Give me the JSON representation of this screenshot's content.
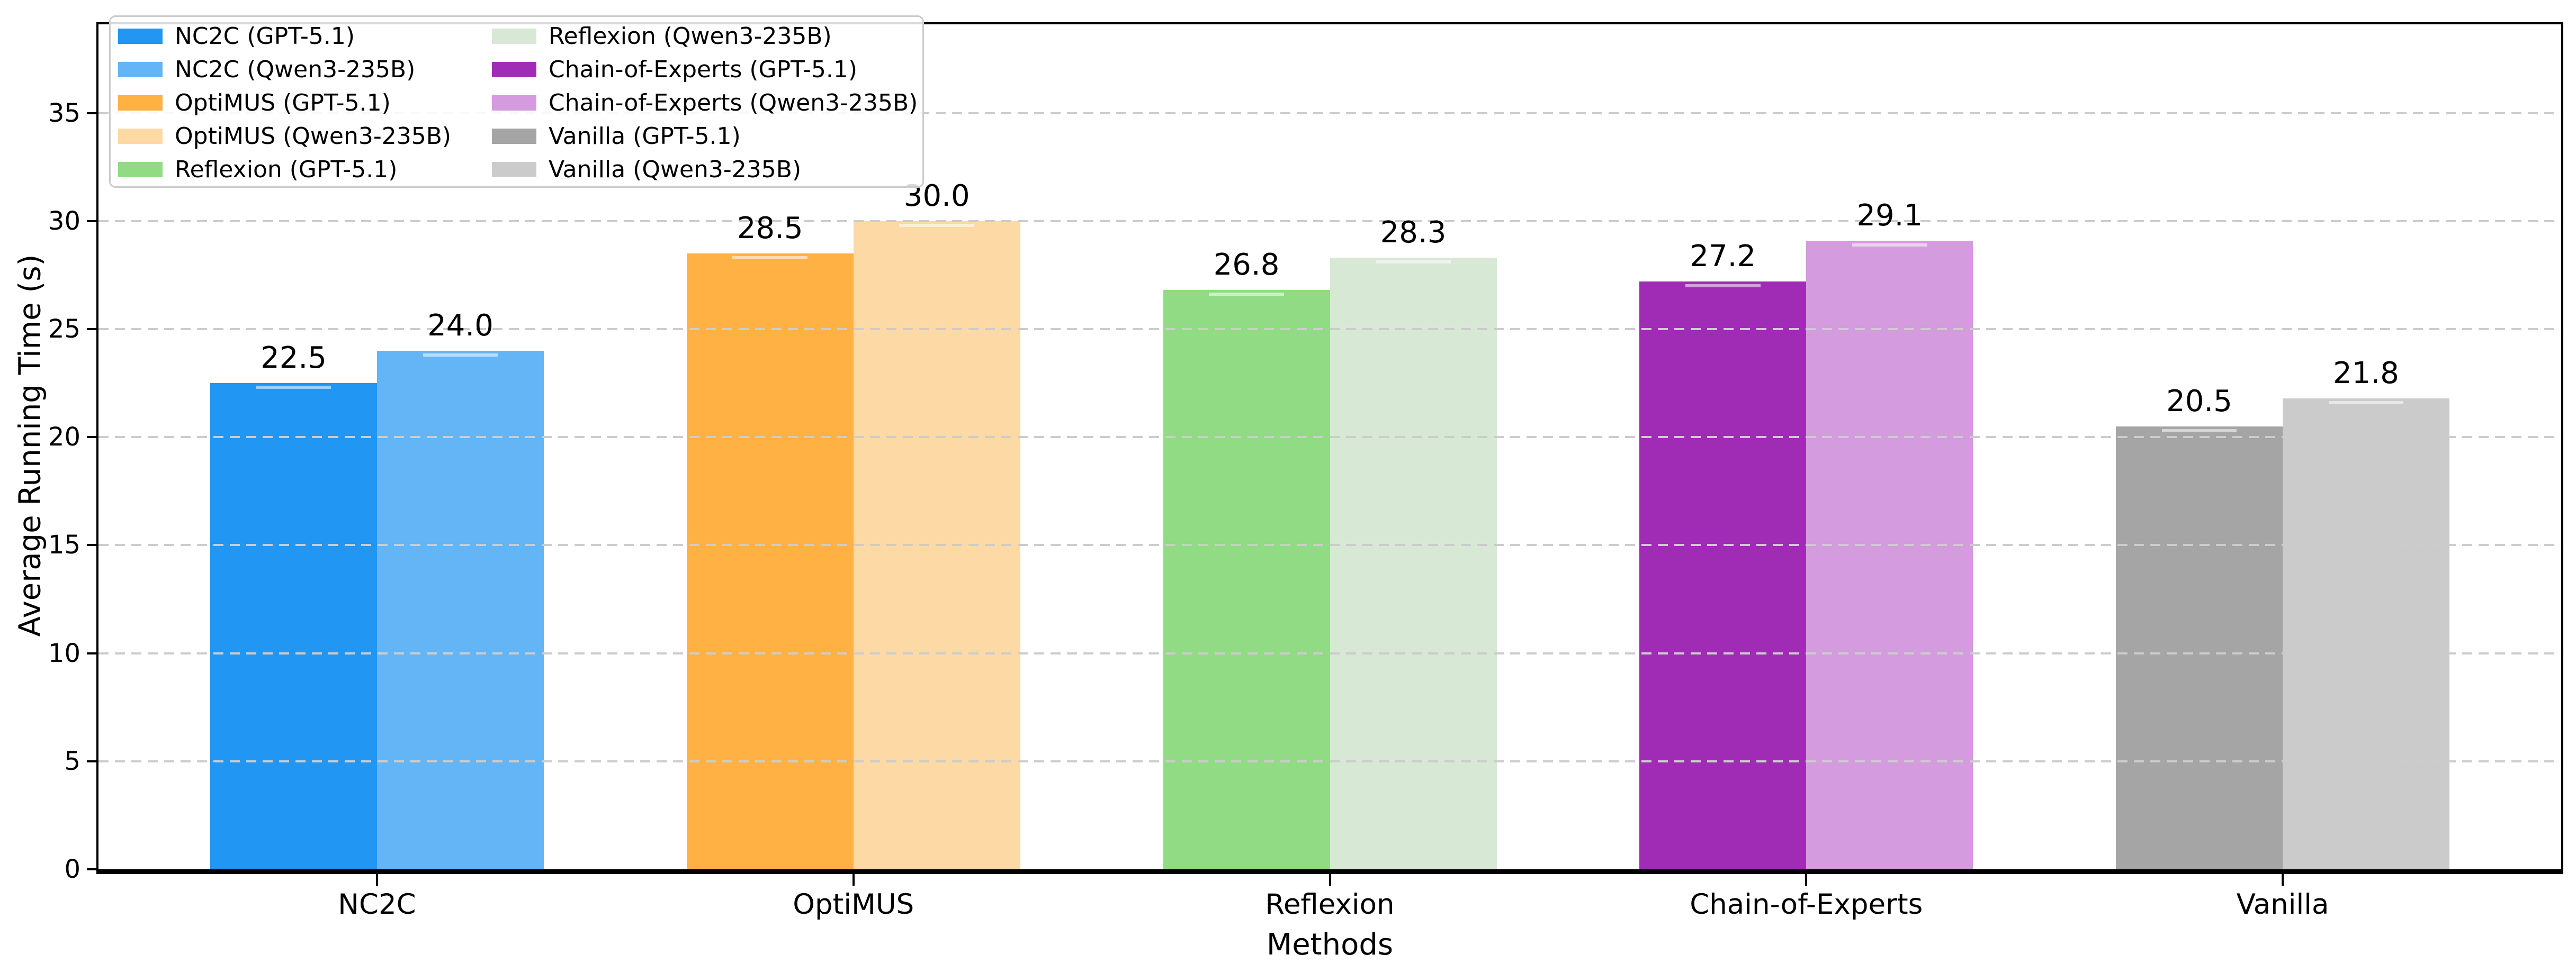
{
  "chart_data": {
    "type": "bar",
    "title": "",
    "xlabel": "Methods",
    "ylabel": "Average Running Time (s)",
    "categories": [
      "NC2C",
      "OptiMUS",
      "Reflexion",
      "Chain-of-Experts",
      "Vanilla"
    ],
    "series": [
      {
        "name": "GPT-5.1",
        "values": [
          22.5,
          28.5,
          26.8,
          27.2,
          20.5
        ]
      },
      {
        "name": "Qwen3-235B",
        "values": [
          24.0,
          30.0,
          28.3,
          29.1,
          21.8
        ]
      }
    ],
    "bar_labels": [
      [
        "22.5",
        "24.0"
      ],
      [
        "28.5",
        "30.0"
      ],
      [
        "26.8",
        "28.3"
      ],
      [
        "27.2",
        "29.1"
      ],
      [
        "20.5",
        "21.8"
      ]
    ],
    "yticks": [
      "0",
      "5",
      "10",
      "15",
      "20",
      "25",
      "30",
      "35"
    ],
    "ylim": [
      0,
      39.2
    ],
    "grid": {
      "axis": "y",
      "style": "dashed",
      "color": "#cccccc",
      "over_bars": true
    },
    "legend": {
      "position": "upper-left",
      "columns": 2,
      "entries": [
        {
          "label": "NC2C (GPT-5.1)",
          "color": "#2196F3"
        },
        {
          "label": "NC2C (Qwen3-235B)",
          "color": "#64B5F6"
        },
        {
          "label": "OptiMUS (GPT-5.1)",
          "color": "#FFB144"
        },
        {
          "label": "OptiMUS (Qwen3-235B)",
          "color": "#FDD9A6"
        },
        {
          "label": "Reflexion (GPT-5.1)",
          "color": "#90DB84"
        },
        {
          "label": "Reflexion (Qwen3-235B)",
          "color": "#D7E9D4"
        },
        {
          "label": "Chain-of-Experts (GPT-5.1)",
          "color": "#A02CB5"
        },
        {
          "label": "Chain-of-Experts (Qwen3-235B)",
          "color": "#D49BDE"
        },
        {
          "label": "Vanilla (GPT-5.1)",
          "color": "#A5A5A5"
        },
        {
          "label": "Vanilla (Qwen3-235B)",
          "color": "#CBCBCB"
        }
      ]
    }
  }
}
